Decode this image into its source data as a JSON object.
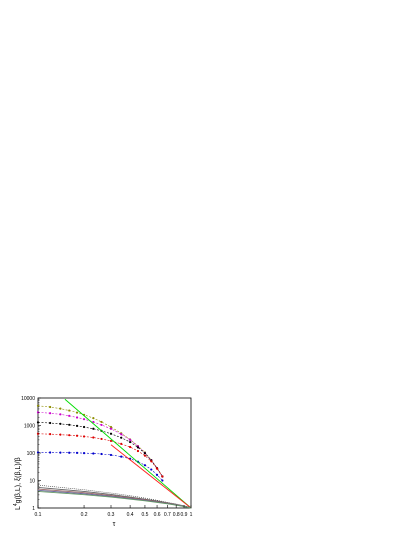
{
  "chart_data": {
    "type": "line",
    "title": "",
    "xlabel": "τ",
    "ylabel_base": "L",
    "ylabel_sup": "4",
    "ylabel_rest": "g(β,L), ξ(β,L)/β",
    "xscale": "log",
    "yscale": "log",
    "xlim": [
      0.1,
      1.0
    ],
    "ylim": [
      1,
      10000
    ],
    "x_ticks": [
      "0.1",
      "0.2",
      "0.3",
      "0.4",
      "0.5",
      "0.6",
      "0.7",
      "0.8",
      "0.9",
      "1"
    ],
    "y_ticks": [
      "1",
      "10",
      "100",
      "1000",
      "10000"
    ],
    "grid": false,
    "legend": "none",
    "series": [
      {
        "color": "#8e8e00",
        "style": "markers+dash",
        "x": [
          0.1,
          0.12,
          0.14,
          0.16,
          0.18,
          0.2,
          0.23,
          0.26,
          0.3,
          0.35,
          0.4,
          0.45,
          0.5,
          0.55,
          0.6,
          0.65
        ],
        "y": [
          5200,
          4700,
          4100,
          3500,
          2950,
          2450,
          1850,
          1350,
          880,
          520,
          310,
          180,
          105,
          55,
          28,
          14
        ]
      },
      {
        "color": "#cc00cc",
        "style": "markers+dash",
        "x": [
          0.1,
          0.12,
          0.14,
          0.16,
          0.18,
          0.2,
          0.23,
          0.26,
          0.3,
          0.35,
          0.4,
          0.45,
          0.5,
          0.55,
          0.6,
          0.65
        ],
        "y": [
          3000,
          2800,
          2550,
          2250,
          1950,
          1700,
          1350,
          1050,
          760,
          480,
          300,
          175,
          100,
          55,
          28,
          14
        ]
      },
      {
        "color": "#000000",
        "style": "markers+dash",
        "x": [
          0.1,
          0.12,
          0.14,
          0.16,
          0.18,
          0.2,
          0.23,
          0.26,
          0.3,
          0.35,
          0.4,
          0.45,
          0.5,
          0.55,
          0.6,
          0.65
        ],
        "y": [
          1300,
          1230,
          1150,
          1060,
          970,
          880,
          760,
          640,
          500,
          360,
          250,
          160,
          98,
          54,
          28,
          14
        ]
      },
      {
        "color": "#dd0000",
        "style": "markers+dash",
        "x": [
          0.1,
          0.12,
          0.14,
          0.16,
          0.18,
          0.2,
          0.23,
          0.26,
          0.3,
          0.35,
          0.4,
          0.45,
          0.5,
          0.55,
          0.6,
          0.65
        ],
        "y": [
          500,
          485,
          465,
          445,
          425,
          400,
          365,
          325,
          275,
          215,
          165,
          118,
          80,
          50,
          27,
          14
        ]
      },
      {
        "color": "#0000cc",
        "style": "markers+dash",
        "x": [
          0.1,
          0.12,
          0.14,
          0.16,
          0.18,
          0.2,
          0.23,
          0.26,
          0.3,
          0.35,
          0.4,
          0.45,
          0.5,
          0.55,
          0.6,
          0.65
        ],
        "y": [
          105,
          104,
          103,
          102,
          101,
          99,
          96,
          92,
          85,
          74,
          62,
          48,
          36,
          25,
          16,
          10
        ]
      },
      {
        "color": "#00dd00",
        "style": "solid",
        "x": [
          0.15,
          1.0
        ],
        "y": [
          9000,
          1.0
        ]
      },
      {
        "color": "#ff2222",
        "style": "solid",
        "x": [
          0.3,
          1.0
        ],
        "y": [
          200,
          1.0
        ]
      },
      {
        "color": "#000000",
        "style": "dot",
        "x": [
          0.1,
          0.2,
          0.3,
          0.4,
          0.5,
          0.6,
          0.7,
          0.8,
          0.9,
          1.0
        ],
        "y": [
          6.8,
          4.6,
          3.5,
          2.8,
          2.3,
          1.9,
          1.6,
          1.4,
          1.2,
          1.05
        ]
      },
      {
        "color": "#606060",
        "style": "solid",
        "x": [
          0.1,
          0.2,
          0.3,
          0.4,
          0.5,
          0.6,
          0.7,
          0.8,
          0.9,
          1.0
        ],
        "y": [
          5.6,
          4.0,
          3.1,
          2.5,
          2.1,
          1.8,
          1.55,
          1.35,
          1.18,
          1.03
        ]
      },
      {
        "color": "#996666",
        "style": "solid",
        "x": [
          0.1,
          0.2,
          0.3,
          0.4,
          0.5,
          0.6,
          0.7,
          0.8,
          0.9,
          1.0
        ],
        "y": [
          4.9,
          3.6,
          2.85,
          2.35,
          2.0,
          1.72,
          1.5,
          1.32,
          1.16,
          1.02
        ]
      },
      {
        "color": "#666699",
        "style": "solid",
        "x": [
          0.1,
          0.2,
          0.3,
          0.4,
          0.5,
          0.6,
          0.7,
          0.8,
          0.9,
          1.0
        ],
        "y": [
          4.4,
          3.3,
          2.65,
          2.2,
          1.9,
          1.65,
          1.45,
          1.29,
          1.14,
          1.01
        ]
      },
      {
        "color": "#669966",
        "style": "solid",
        "x": [
          0.1,
          0.2,
          0.3,
          0.4,
          0.5,
          0.6,
          0.7,
          0.8,
          0.9,
          1.0
        ],
        "y": [
          4.0,
          3.05,
          2.5,
          2.1,
          1.82,
          1.6,
          1.42,
          1.27,
          1.13,
          1.0
        ]
      }
    ]
  }
}
